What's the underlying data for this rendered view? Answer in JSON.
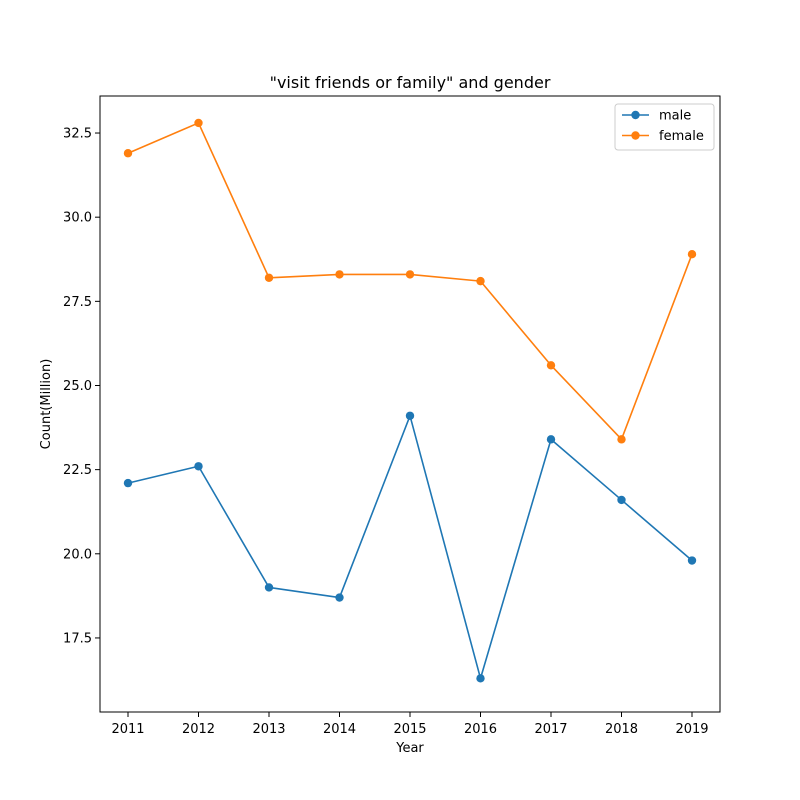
{
  "chart_data": {
    "type": "line",
    "title": "\"visit friends or family\" and gender",
    "xlabel": "Year",
    "ylabel": "Count(Million)",
    "x": [
      "2011",
      "2012",
      "2013",
      "2014",
      "2015",
      "2016",
      "2017",
      "2018",
      "2019"
    ],
    "ylim": [
      15.3,
      33.6
    ],
    "yticks": [
      "17.5",
      "20.0",
      "22.5",
      "25.0",
      "27.5",
      "30.0",
      "32.5"
    ],
    "grid": false,
    "legend_position": "top-right",
    "series": [
      {
        "name": "male",
        "color": "#1f77b4",
        "marker": "circle",
        "values": [
          22.1,
          22.6,
          19.0,
          18.7,
          24.1,
          16.3,
          23.4,
          21.6,
          19.8
        ]
      },
      {
        "name": "female",
        "color": "#ff7f0e",
        "marker": "circle",
        "values": [
          31.9,
          32.8,
          28.2,
          28.3,
          28.3,
          28.1,
          25.6,
          23.4,
          28.9
        ]
      }
    ]
  }
}
